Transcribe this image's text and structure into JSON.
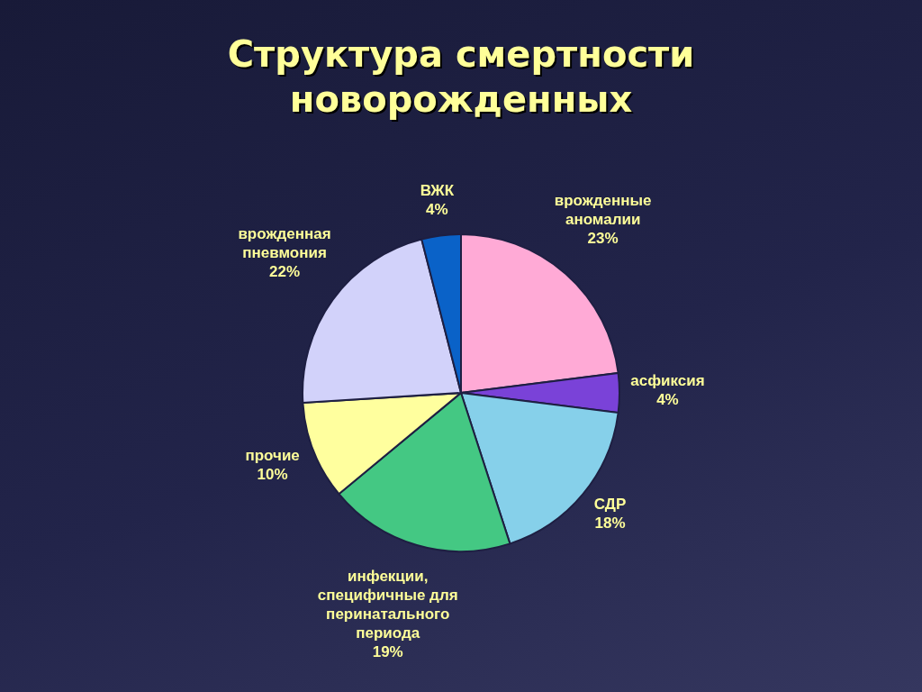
{
  "chart_data": {
    "type": "pie",
    "title": "Структура смертности новорожденных",
    "categories": [
      "врожденные аномалии",
      "асфиксия",
      "СДР",
      "инфекции, специфичные для перинатального периода",
      "прочие",
      "врожденная пневмония",
      "ВЖК"
    ],
    "values": [
      23,
      4,
      18,
      19,
      10,
      22,
      4
    ],
    "value_labels": [
      "23%",
      "4%",
      "18%",
      "19%",
      "10%",
      "22%",
      "4%"
    ],
    "colors": [
      "#ffaad6",
      "#7a42d8",
      "#86d0ea",
      "#44c883",
      "#ffff9e",
      "#d2d2fa",
      "#0a62c8"
    ]
  }
}
